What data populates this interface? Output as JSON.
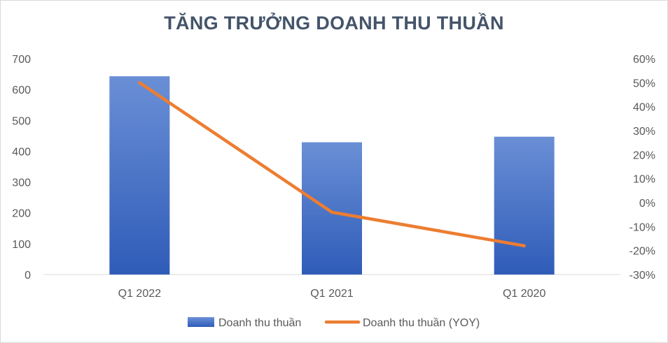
{
  "chart_data": {
    "type": "bar",
    "title": "TĂNG TRƯỞNG DOANH THU THUẦN",
    "categories": [
      "Q1 2022",
      "Q1 2021",
      "Q1 2020"
    ],
    "series": [
      {
        "name": "Doanh thu thuần",
        "kind": "bar",
        "axis": "left",
        "values": [
          643,
          429,
          447
        ],
        "color": "#4472c4"
      },
      {
        "name": "Doanh thu thuần (YOY)",
        "kind": "line",
        "axis": "right",
        "values": [
          0.5,
          -0.04,
          -0.18
        ],
        "color": "#ed7d31"
      }
    ],
    "y_left": {
      "min": 0,
      "max": 700,
      "step": 100,
      "ticks": [
        "0",
        "100",
        "200",
        "300",
        "400",
        "500",
        "600",
        "700"
      ]
    },
    "y_right": {
      "min": -0.3,
      "max": 0.6,
      "step": 0.1,
      "ticks": [
        "-30%",
        "-20%",
        "-10%",
        "0%",
        "10%",
        "20%",
        "30%",
        "40%",
        "50%",
        "60%"
      ]
    },
    "grid": false,
    "legend_position": "bottom"
  }
}
